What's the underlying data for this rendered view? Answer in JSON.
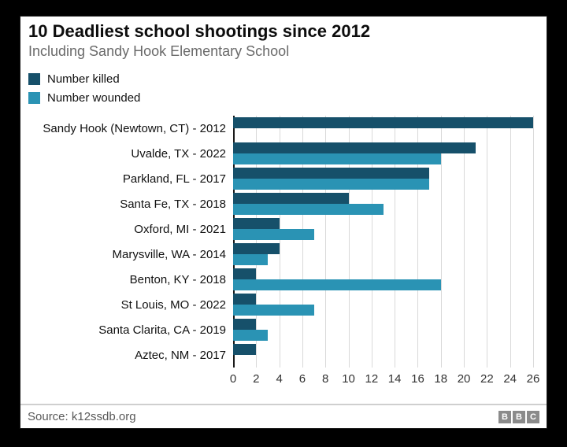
{
  "header": {
    "title": "10 Deadliest school shootings since 2012",
    "subtitle": "Including Sandy Hook Elementary School"
  },
  "legend": {
    "items": [
      {
        "label": "Number killed",
        "color": "#16506a"
      },
      {
        "label": "Number wounded",
        "color": "#2a93b4"
      }
    ],
    "position": "top-left"
  },
  "chart_data": {
    "type": "bar",
    "orientation": "horizontal",
    "title": "10 Deadliest school shootings since 2012",
    "subtitle": "Including Sandy Hook Elementary School",
    "categories": [
      "Sandy Hook (Newtown, CT) - 2012",
      "Uvalde, TX - 2022",
      "Parkland, FL - 2017",
      "Santa Fe, TX - 2018",
      "Oxford, MI - 2021",
      "Marysville, WA - 2014",
      "Benton, KY - 2018",
      "St Louis, MO - 2022",
      "Santa Clarita, CA - 2019",
      "Aztec, NM - 2017"
    ],
    "series": [
      {
        "name": "Number killed",
        "color": "#16506a",
        "values": [
          26,
          21,
          17,
          10,
          4,
          4,
          2,
          2,
          2,
          2
        ]
      },
      {
        "name": "Number wounded",
        "color": "#2a93b4",
        "values": [
          0,
          18,
          17,
          13,
          7,
          3,
          18,
          7,
          3,
          0
        ]
      }
    ],
    "xlabel": "",
    "ylabel": "",
    "xlim": [
      0,
      26
    ],
    "xticks": [
      0,
      2,
      4,
      6,
      8,
      10,
      12,
      14,
      16,
      18,
      20,
      22,
      24,
      26
    ],
    "grid": true
  },
  "footer": {
    "source": "Source: k12ssdb.org",
    "logo_letters": [
      "B",
      "B",
      "C"
    ]
  }
}
